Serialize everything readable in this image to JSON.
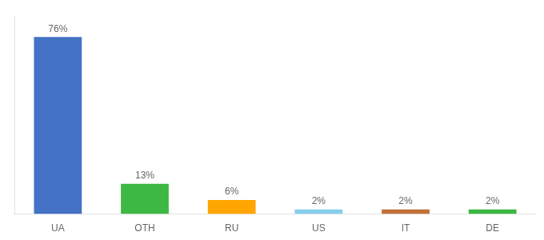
{
  "chart_data": {
    "type": "bar",
    "categories": [
      "UA",
      "OTH",
      "RU",
      "US",
      "IT",
      "DE"
    ],
    "values": [
      76,
      13,
      6,
      2,
      2,
      2
    ],
    "value_labels": [
      "76%",
      "13%",
      "6%",
      "2%",
      "2%",
      "2%"
    ],
    "colors": [
      "#4472C4",
      "#3CB843",
      "#FFA500",
      "#87CEEB",
      "#C0703A",
      "#3CB843"
    ],
    "ylim": [
      0,
      85
    ],
    "grid": false,
    "tick_labels": "x",
    "data_labels": true
  }
}
